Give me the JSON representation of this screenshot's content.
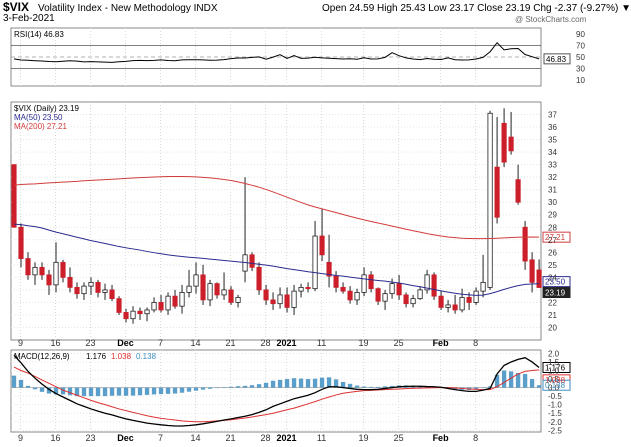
{
  "header": {
    "symbol": "$VIX",
    "name": "Volatility Index - New Methodology  INDX",
    "date": "3-Feb-2021",
    "quote": "Open 24.59  High 25.43  Low 23.17  Close 23.19  Chg -2.37 (-9.27%) ▼",
    "watermark": "@ StockCharts.com"
  },
  "chart_data": [
    {
      "type": "line",
      "panel": "rsi",
      "legend": "RSI(14) 46.83",
      "ylim": [
        0,
        100
      ],
      "y_ticks": [
        "90",
        "70",
        "50",
        "30",
        "10"
      ],
      "levels": [
        70,
        50,
        30
      ],
      "last_value_label": "46.83",
      "series": [
        {
          "name": "RSI(14)",
          "color": "#000000",
          "values": [
            46.8,
            44.9,
            44.3,
            43.6,
            43.1,
            42.2,
            41.8,
            42.6,
            43.5,
            42.9,
            41.7,
            42.1,
            41.6,
            41.2,
            40.7,
            41.8,
            42.5,
            43.7,
            44.2,
            43.8,
            44.1,
            45,
            44,
            43.5,
            45,
            45.3,
            45.2,
            45,
            44.5,
            44.7,
            45.4,
            47.1,
            48.3,
            48.2,
            49.4,
            50.1,
            46.1,
            49.8,
            54,
            47.5,
            52.5,
            47.7,
            48.1,
            49.6,
            48.4,
            47.8,
            47.1,
            46.6,
            46.9,
            46.2,
            48.7,
            46.5,
            46.7,
            49.4,
            57.4,
            52.3,
            48.4,
            46.6,
            45.4,
            47.5,
            46.2,
            45.8,
            48.4,
            45.2,
            44.8,
            45,
            46.6,
            49.3,
            59.1,
            74.6,
            62.3,
            64.2,
            64.6,
            54.3,
            50.5,
            46.8
          ]
        }
      ]
    },
    {
      "type": "candlestick",
      "panel": "price",
      "legend": [
        "$VIX (Daily) 23.19",
        "MA(50) 23.50",
        "MA(200) 27.21"
      ],
      "ylim": [
        19,
        38
      ],
      "y_ticks": [
        "37",
        "36",
        "35",
        "34",
        "33",
        "32",
        "31",
        "30",
        "29",
        "28",
        "27",
        "26",
        "25",
        "24",
        "23",
        "22",
        "21",
        "20"
      ],
      "x_ticks": [
        "9",
        "16",
        "23",
        "Dec",
        "7",
        "14",
        "21",
        "28",
        "2021",
        "11",
        "19",
        "25",
        "Feb",
        "8"
      ],
      "last_labels": [
        "27.21",
        "23.50",
        "23.19"
      ],
      "candles": [
        {
          "o": 33,
          "h": 33,
          "l": 28,
          "c": 28
        },
        {
          "o": 28,
          "h": 28.3,
          "l": 24.8,
          "c": 25.5
        },
        {
          "o": 25.5,
          "h": 26,
          "l": 23.8,
          "c": 24.2
        },
        {
          "o": 24.2,
          "h": 25.2,
          "l": 23.4,
          "c": 24.8
        },
        {
          "o": 24.8,
          "h": 25.2,
          "l": 23.8,
          "c": 24.2
        },
        {
          "o": 24.2,
          "h": 24.6,
          "l": 22.6,
          "c": 23.4
        },
        {
          "o": 23.4,
          "h": 26.8,
          "l": 22.8,
          "c": 25.2
        },
        {
          "o": 25.2,
          "h": 25.4,
          "l": 23.6,
          "c": 24
        },
        {
          "o": 24,
          "h": 24.8,
          "l": 22.8,
          "c": 23.2
        },
        {
          "o": 23.2,
          "h": 23.6,
          "l": 22.3,
          "c": 22.7
        },
        {
          "o": 22.7,
          "h": 23.6,
          "l": 22.2,
          "c": 23.3
        },
        {
          "o": 23.3,
          "h": 24,
          "l": 22.6,
          "c": 23.6
        },
        {
          "o": 23.6,
          "h": 23.8,
          "l": 22.4,
          "c": 22.8
        },
        {
          "o": 22.8,
          "h": 23.5,
          "l": 22.2,
          "c": 23
        },
        {
          "o": 23,
          "h": 23.4,
          "l": 22.1,
          "c": 22.3
        },
        {
          "o": 22.3,
          "h": 22.5,
          "l": 21,
          "c": 21.2
        },
        {
          "o": 21.2,
          "h": 21.5,
          "l": 20.4,
          "c": 20.7
        },
        {
          "o": 20.7,
          "h": 21.7,
          "l": 20.3,
          "c": 21.3
        },
        {
          "o": 21.3,
          "h": 21.6,
          "l": 20.6,
          "c": 21.1
        },
        {
          "o": 21.1,
          "h": 21.6,
          "l": 20.5,
          "c": 21.4
        },
        {
          "o": 21.4,
          "h": 22.4,
          "l": 21.2,
          "c": 22
        },
        {
          "o": 22,
          "h": 22.6,
          "l": 21.2,
          "c": 21.4
        },
        {
          "o": 21.4,
          "h": 22.8,
          "l": 21,
          "c": 22.5
        },
        {
          "o": 22.5,
          "h": 23,
          "l": 21.5,
          "c": 21.7
        },
        {
          "o": 21.7,
          "h": 23.4,
          "l": 21.1,
          "c": 22.8
        },
        {
          "o": 22.8,
          "h": 24.6,
          "l": 22.4,
          "c": 23.3
        },
        {
          "o": 23.3,
          "h": 25.2,
          "l": 22.7,
          "c": 24.2
        },
        {
          "o": 24.2,
          "h": 25,
          "l": 21.8,
          "c": 22.2
        },
        {
          "o": 22.2,
          "h": 23.8,
          "l": 21.7,
          "c": 23.5
        },
        {
          "o": 23.5,
          "h": 23.6,
          "l": 22.3,
          "c": 22.6
        },
        {
          "o": 22.6,
          "h": 24.4,
          "l": 22.2,
          "c": 23
        },
        {
          "o": 23,
          "h": 23.3,
          "l": 21.8,
          "c": 22
        },
        {
          "o": 22,
          "h": 22.6,
          "l": 21.6,
          "c": 22.4
        },
        {
          "o": 24.5,
          "h": 32,
          "l": 23.6,
          "c": 25.8
        },
        {
          "o": 25.8,
          "h": 26,
          "l": 24.5,
          "c": 24.8
        },
        {
          "o": 24.8,
          "h": 25.2,
          "l": 22.6,
          "c": 23
        },
        {
          "o": 23,
          "h": 23.4,
          "l": 21.8,
          "c": 22.2
        },
        {
          "o": 22.2,
          "h": 22.8,
          "l": 21.4,
          "c": 21.9
        },
        {
          "o": 21.9,
          "h": 23.2,
          "l": 21.5,
          "c": 22.6
        },
        {
          "o": 22.6,
          "h": 23.2,
          "l": 21.2,
          "c": 21.6
        },
        {
          "o": 21.6,
          "h": 23.4,
          "l": 21,
          "c": 22.9
        },
        {
          "o": 22.9,
          "h": 23.5,
          "l": 22.4,
          "c": 23.2
        },
        {
          "o": 23.2,
          "h": 23.6,
          "l": 22.8,
          "c": 23.1
        },
        {
          "o": 23.1,
          "h": 28.5,
          "l": 22.9,
          "c": 27.3
        },
        {
          "o": 27.3,
          "h": 29.5,
          "l": 25.3,
          "c": 25.8
        },
        {
          "o": 25.2,
          "h": 27.4,
          "l": 23.2,
          "c": 24.1
        },
        {
          "o": 24.1,
          "h": 24.5,
          "l": 22.8,
          "c": 23.2
        },
        {
          "o": 23.2,
          "h": 23.6,
          "l": 22.7,
          "c": 22.9
        },
        {
          "o": 22.9,
          "h": 23.3,
          "l": 21.9,
          "c": 22.2
        },
        {
          "o": 22.2,
          "h": 23.1,
          "l": 21.8,
          "c": 22.8
        },
        {
          "o": 22.8,
          "h": 24.8,
          "l": 22.5,
          "c": 24.2
        },
        {
          "o": 24.2,
          "h": 24.5,
          "l": 22.8,
          "c": 23.1
        },
        {
          "o": 23.1,
          "h": 23.2,
          "l": 21.8,
          "c": 22.1
        },
        {
          "o": 22.1,
          "h": 23,
          "l": 21.4,
          "c": 22.7
        },
        {
          "o": 22.7,
          "h": 23.9,
          "l": 22.3,
          "c": 23.5
        },
        {
          "o": 23.5,
          "h": 24.2,
          "l": 22.2,
          "c": 22.6
        },
        {
          "o": 22.6,
          "h": 22.8,
          "l": 21.6,
          "c": 21.9
        },
        {
          "o": 21.9,
          "h": 22.6,
          "l": 21.6,
          "c": 22.3
        },
        {
          "o": 22.3,
          "h": 23.3,
          "l": 22.2,
          "c": 23
        },
        {
          "o": 23,
          "h": 24.6,
          "l": 22.7,
          "c": 24.2
        },
        {
          "o": 24.2,
          "h": 24.4,
          "l": 22.2,
          "c": 22.5
        },
        {
          "o": 22.5,
          "h": 22.9,
          "l": 21.4,
          "c": 21.6
        },
        {
          "o": 21.6,
          "h": 22.2,
          "l": 21.2,
          "c": 21.8
        },
        {
          "o": 21.8,
          "h": 22.6,
          "l": 21.1,
          "c": 21.4
        },
        {
          "o": 21.4,
          "h": 23.1,
          "l": 21.2,
          "c": 22.4
        },
        {
          "o": 22.4,
          "h": 22.8,
          "l": 21.4,
          "c": 22
        },
        {
          "o": 22,
          "h": 23.2,
          "l": 21.8,
          "c": 22.9
        },
        {
          "o": 22.9,
          "h": 25.8,
          "l": 22.4,
          "c": 23.6
        },
        {
          "o": 23.2,
          "h": 37.3,
          "l": 23,
          "c": 37.1
        },
        {
          "o": 32.8,
          "h": 36.8,
          "l": 28.3,
          "c": 28.8
        },
        {
          "o": 36.3,
          "h": 37.5,
          "l": 32.8,
          "c": 33.2
        },
        {
          "o": 35.2,
          "h": 37.2,
          "l": 33.8,
          "c": 34.1
        },
        {
          "o": 31.8,
          "h": 33,
          "l": 29.8,
          "c": 30
        },
        {
          "o": 28,
          "h": 28.5,
          "l": 24.6,
          "c": 25.3
        },
        {
          "o": 25.4,
          "h": 26,
          "l": 22.8,
          "c": 23.6
        },
        {
          "o": 24.59,
          "h": 25.43,
          "l": 23.17,
          "c": 23.19
        }
      ],
      "series": [
        {
          "name": "MA(50)",
          "color": "#2b2b8f",
          "values": [
            28.25,
            28.21,
            28.12,
            28.05,
            27.94,
            27.77,
            27.61,
            27.48,
            27.34,
            27.2,
            27.07,
            26.93,
            26.82,
            26.7,
            26.58,
            26.46,
            26.36,
            26.27,
            26.18,
            26.07,
            25.97,
            25.89,
            25.8,
            25.73,
            25.67,
            25.61,
            25.57,
            25.52,
            25.46,
            25.41,
            25.35,
            25.3,
            25.24,
            25.19,
            25.12,
            25.05,
            24.98,
            24.9,
            24.8,
            24.7,
            24.62,
            24.54,
            24.45,
            24.38,
            24.3,
            24.23,
            24.15,
            24.1,
            24.02,
            23.95,
            23.88,
            23.81,
            23.75,
            23.7,
            23.62,
            23.55,
            23.45,
            23.34,
            23.25,
            23.14,
            23.03,
            22.92,
            22.82,
            22.73,
            22.65,
            22.6,
            22.56,
            22.58,
            22.7,
            22.86,
            23.04,
            23.2,
            23.34,
            23.44,
            23.47,
            23.5
          ]
        },
        {
          "name": "MA(200)",
          "color": "#d23c3c",
          "values": [
            31.36,
            31.41,
            31.44,
            31.46,
            31.5,
            31.54,
            31.57,
            31.6,
            31.63,
            31.66,
            31.71,
            31.74,
            31.77,
            31.8,
            31.83,
            31.86,
            31.9,
            31.93,
            31.96,
            31.98,
            32.01,
            32.03,
            32.05,
            32.05,
            32.05,
            32.04,
            32.02,
            31.98,
            31.94,
            31.88,
            31.81,
            31.73,
            31.62,
            31.49,
            31.35,
            31.2,
            31.02,
            30.82,
            30.61,
            30.4,
            30.19,
            29.98,
            29.79,
            29.62,
            29.47,
            29.32,
            29.17,
            29.02,
            28.87,
            28.73,
            28.59,
            28.46,
            28.34,
            28.22,
            28.09,
            27.97,
            27.84,
            27.72,
            27.61,
            27.49,
            27.39,
            27.3,
            27.22,
            27.17,
            27.12,
            27.1,
            27.09,
            27.09,
            27.1,
            27.12,
            27.15,
            27.18,
            27.2,
            27.21,
            27.22,
            27.21
          ]
        }
      ]
    },
    {
      "type": "bar",
      "panel": "macd",
      "legend": [
        "MACD(12,26,9)",
        "1.176",
        "1.038",
        "0.138"
      ],
      "ylim": [
        -2.6,
        2.2
      ],
      "y_ticks": [
        "2.0",
        "1.5",
        "1.0",
        "0.5",
        "0.0",
        "-0.5",
        "-1.0",
        "-1.5",
        "-2.0",
        "-2.5"
      ],
      "last_labels": [
        "1.176",
        "1.038",
        "0.138"
      ],
      "series": [
        {
          "name": "MACD",
          "color": "#000000",
          "values": [
            1.9,
            1.45,
            0.95,
            0.55,
            0.2,
            -0.1,
            -0.35,
            -0.55,
            -0.75,
            -0.95,
            -1.1,
            -1.25,
            -1.38,
            -1.5,
            -1.6,
            -1.72,
            -1.83,
            -1.92,
            -2,
            -2.08,
            -2.13,
            -2.18,
            -2.22,
            -2.25,
            -2.25,
            -2.22,
            -2.18,
            -2.12,
            -2.05,
            -1.98,
            -1.9,
            -1.83,
            -1.75,
            -1.68,
            -1.58,
            -1.45,
            -1.3,
            -1.1,
            -0.95,
            -0.8,
            -0.65,
            -0.55,
            -0.45,
            -0.3,
            -0.1,
            0.05,
            0.05,
            0,
            -0.05,
            -0.1,
            -0.12,
            -0.12,
            -0.1,
            -0.05,
            0,
            0.05,
            0.07,
            0.08,
            0.08,
            0.06,
            0.05,
            0.02,
            -0.05,
            -0.12,
            -0.18,
            -0.22,
            -0.22,
            -0.15,
            -0.05,
            0.8,
            1.3,
            1.5,
            1.65,
            1.75,
            1.5,
            1.176
          ]
        },
        {
          "name": "Signal",
          "color": "#e03030",
          "values": [
            1.2,
            1,
            0.85,
            0.65,
            0.45,
            0.25,
            0.05,
            -0.15,
            -0.3,
            -0.45,
            -0.6,
            -0.75,
            -0.88,
            -1,
            -1.12,
            -1.25,
            -1.35,
            -1.45,
            -1.55,
            -1.65,
            -1.73,
            -1.8,
            -1.85,
            -1.9,
            -1.95,
            -1.98,
            -2,
            -2,
            -1.98,
            -1.95,
            -1.92,
            -1.88,
            -1.83,
            -1.78,
            -1.72,
            -1.65,
            -1.58,
            -1.5,
            -1.4,
            -1.3,
            -1.2,
            -1.08,
            -0.95,
            -0.82,
            -0.68,
            -0.55,
            -0.43,
            -0.33,
            -0.27,
            -0.22,
            -0.18,
            -0.16,
            -0.14,
            -0.12,
            -0.1,
            -0.08,
            -0.06,
            -0.04,
            -0.03,
            -0.02,
            -0.01,
            0,
            0,
            -0.02,
            -0.05,
            -0.08,
            -0.1,
            -0.12,
            -0.12,
            0.05,
            0.3,
            0.55,
            0.8,
            0.95,
            1,
            1.038
          ]
        },
        {
          "name": "Histogram",
          "color": "#3d8ec0",
          "values": [
            0.7,
            0.45,
            0.1,
            -0.1,
            -0.25,
            -0.35,
            -0.4,
            -0.4,
            -0.45,
            -0.5,
            -0.5,
            -0.5,
            -0.5,
            -0.5,
            -0.48,
            -0.47,
            -0.48,
            -0.47,
            -0.45,
            -0.43,
            -0.4,
            -0.38,
            -0.37,
            -0.35,
            -0.3,
            -0.24,
            -0.18,
            -0.12,
            -0.07,
            -0.03,
            0.02,
            0.05,
            0.08,
            0.1,
            0.14,
            0.2,
            0.28,
            0.4,
            0.45,
            0.5,
            0.55,
            0.53,
            0.5,
            0.52,
            0.58,
            0.6,
            0.48,
            0.33,
            0.22,
            0.12,
            0.06,
            0.04,
            0.04,
            0.07,
            0.1,
            0.13,
            0.13,
            0.12,
            0.11,
            0.08,
            0.06,
            0.02,
            -0.05,
            -0.1,
            -0.13,
            -0.14,
            -0.12,
            -0.03,
            0.07,
            0.75,
            1,
            0.95,
            0.85,
            0.8,
            0.5,
            0.138
          ]
        }
      ]
    }
  ]
}
